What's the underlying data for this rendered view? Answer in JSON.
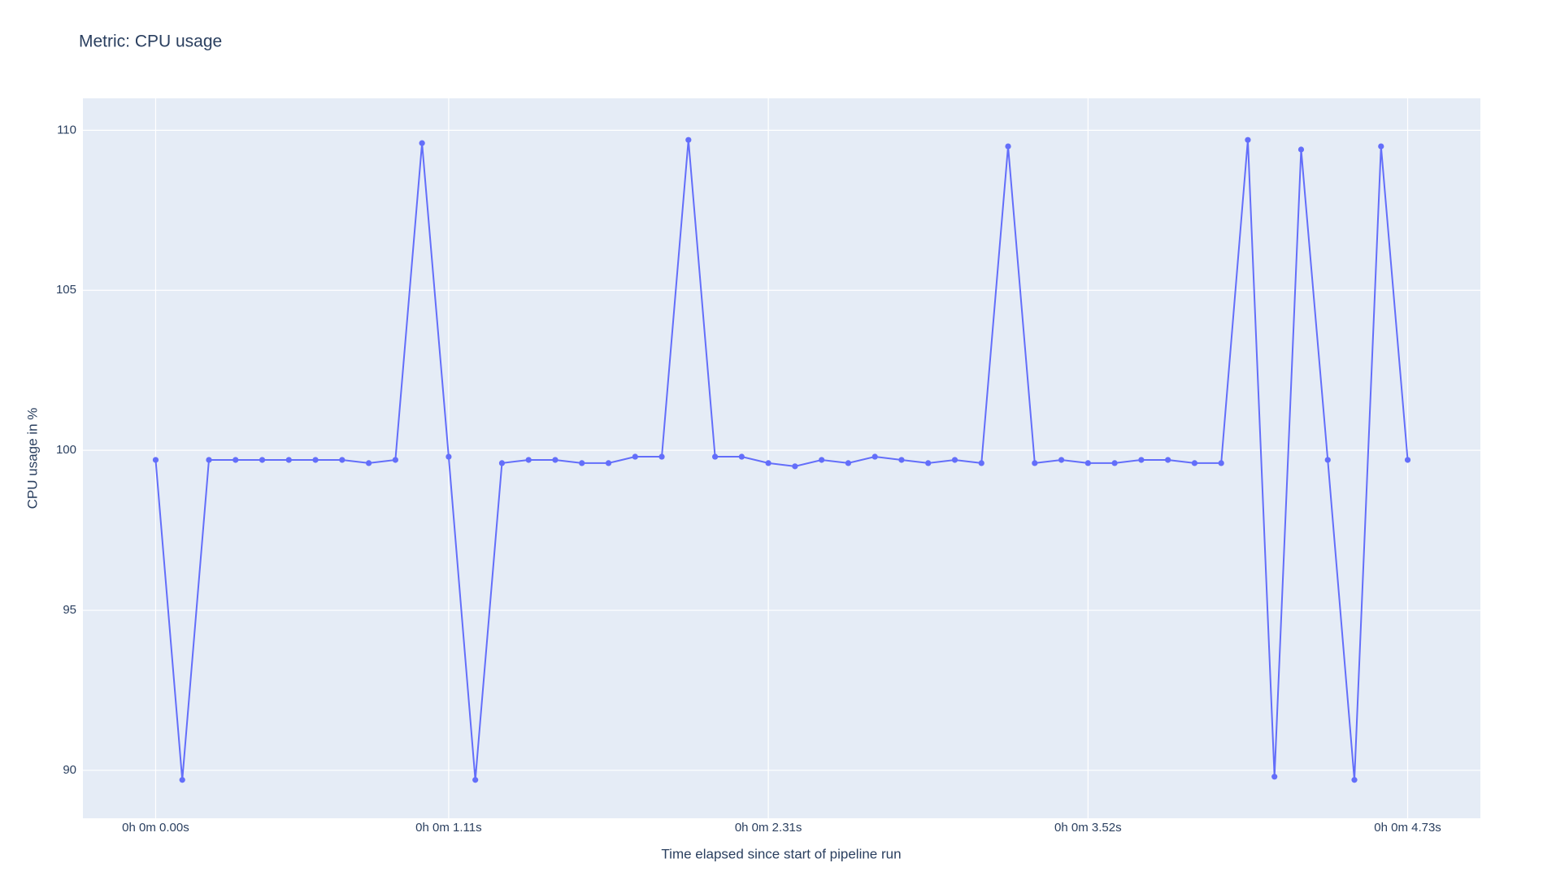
{
  "chart_data": {
    "type": "line",
    "title": "Metric: CPU usage",
    "x_label": "Time elapsed since start of pipeline run",
    "y_label": "CPU usage in %",
    "categories": [
      "0h 0m 0.00s",
      null,
      null,
      null,
      null,
      null,
      null,
      null,
      null,
      null,
      null,
      "0h 0m 1.11s",
      null,
      null,
      null,
      null,
      null,
      null,
      null,
      null,
      null,
      null,
      null,
      "0h 0m 2.31s",
      null,
      null,
      null,
      null,
      null,
      null,
      null,
      null,
      null,
      null,
      null,
      "0h 0m 3.52s",
      null,
      null,
      null,
      null,
      null,
      null,
      null,
      null,
      null,
      null,
      null,
      "0h 0m 4.73s"
    ],
    "values": [
      99.7,
      89.7,
      99.7,
      99.7,
      99.7,
      99.7,
      99.7,
      99.7,
      99.6,
      99.7,
      109.6,
      99.8,
      89.7,
      99.6,
      99.7,
      99.7,
      99.6,
      99.6,
      99.8,
      99.8,
      109.7,
      99.8,
      99.8,
      99.6,
      99.5,
      99.7,
      99.6,
      99.8,
      99.7,
      99.6,
      99.7,
      99.6,
      109.5,
      99.6,
      99.7,
      99.6,
      99.6,
      99.7,
      99.7,
      99.6,
      99.6,
      109.7,
      89.8,
      109.4,
      99.7,
      89.7,
      109.5,
      99.7
    ],
    "color": "#636efa",
    "ylim": [
      88.5,
      111
    ],
    "yticks": [
      90,
      95,
      100,
      105,
      110
    ],
    "grid": true
  }
}
